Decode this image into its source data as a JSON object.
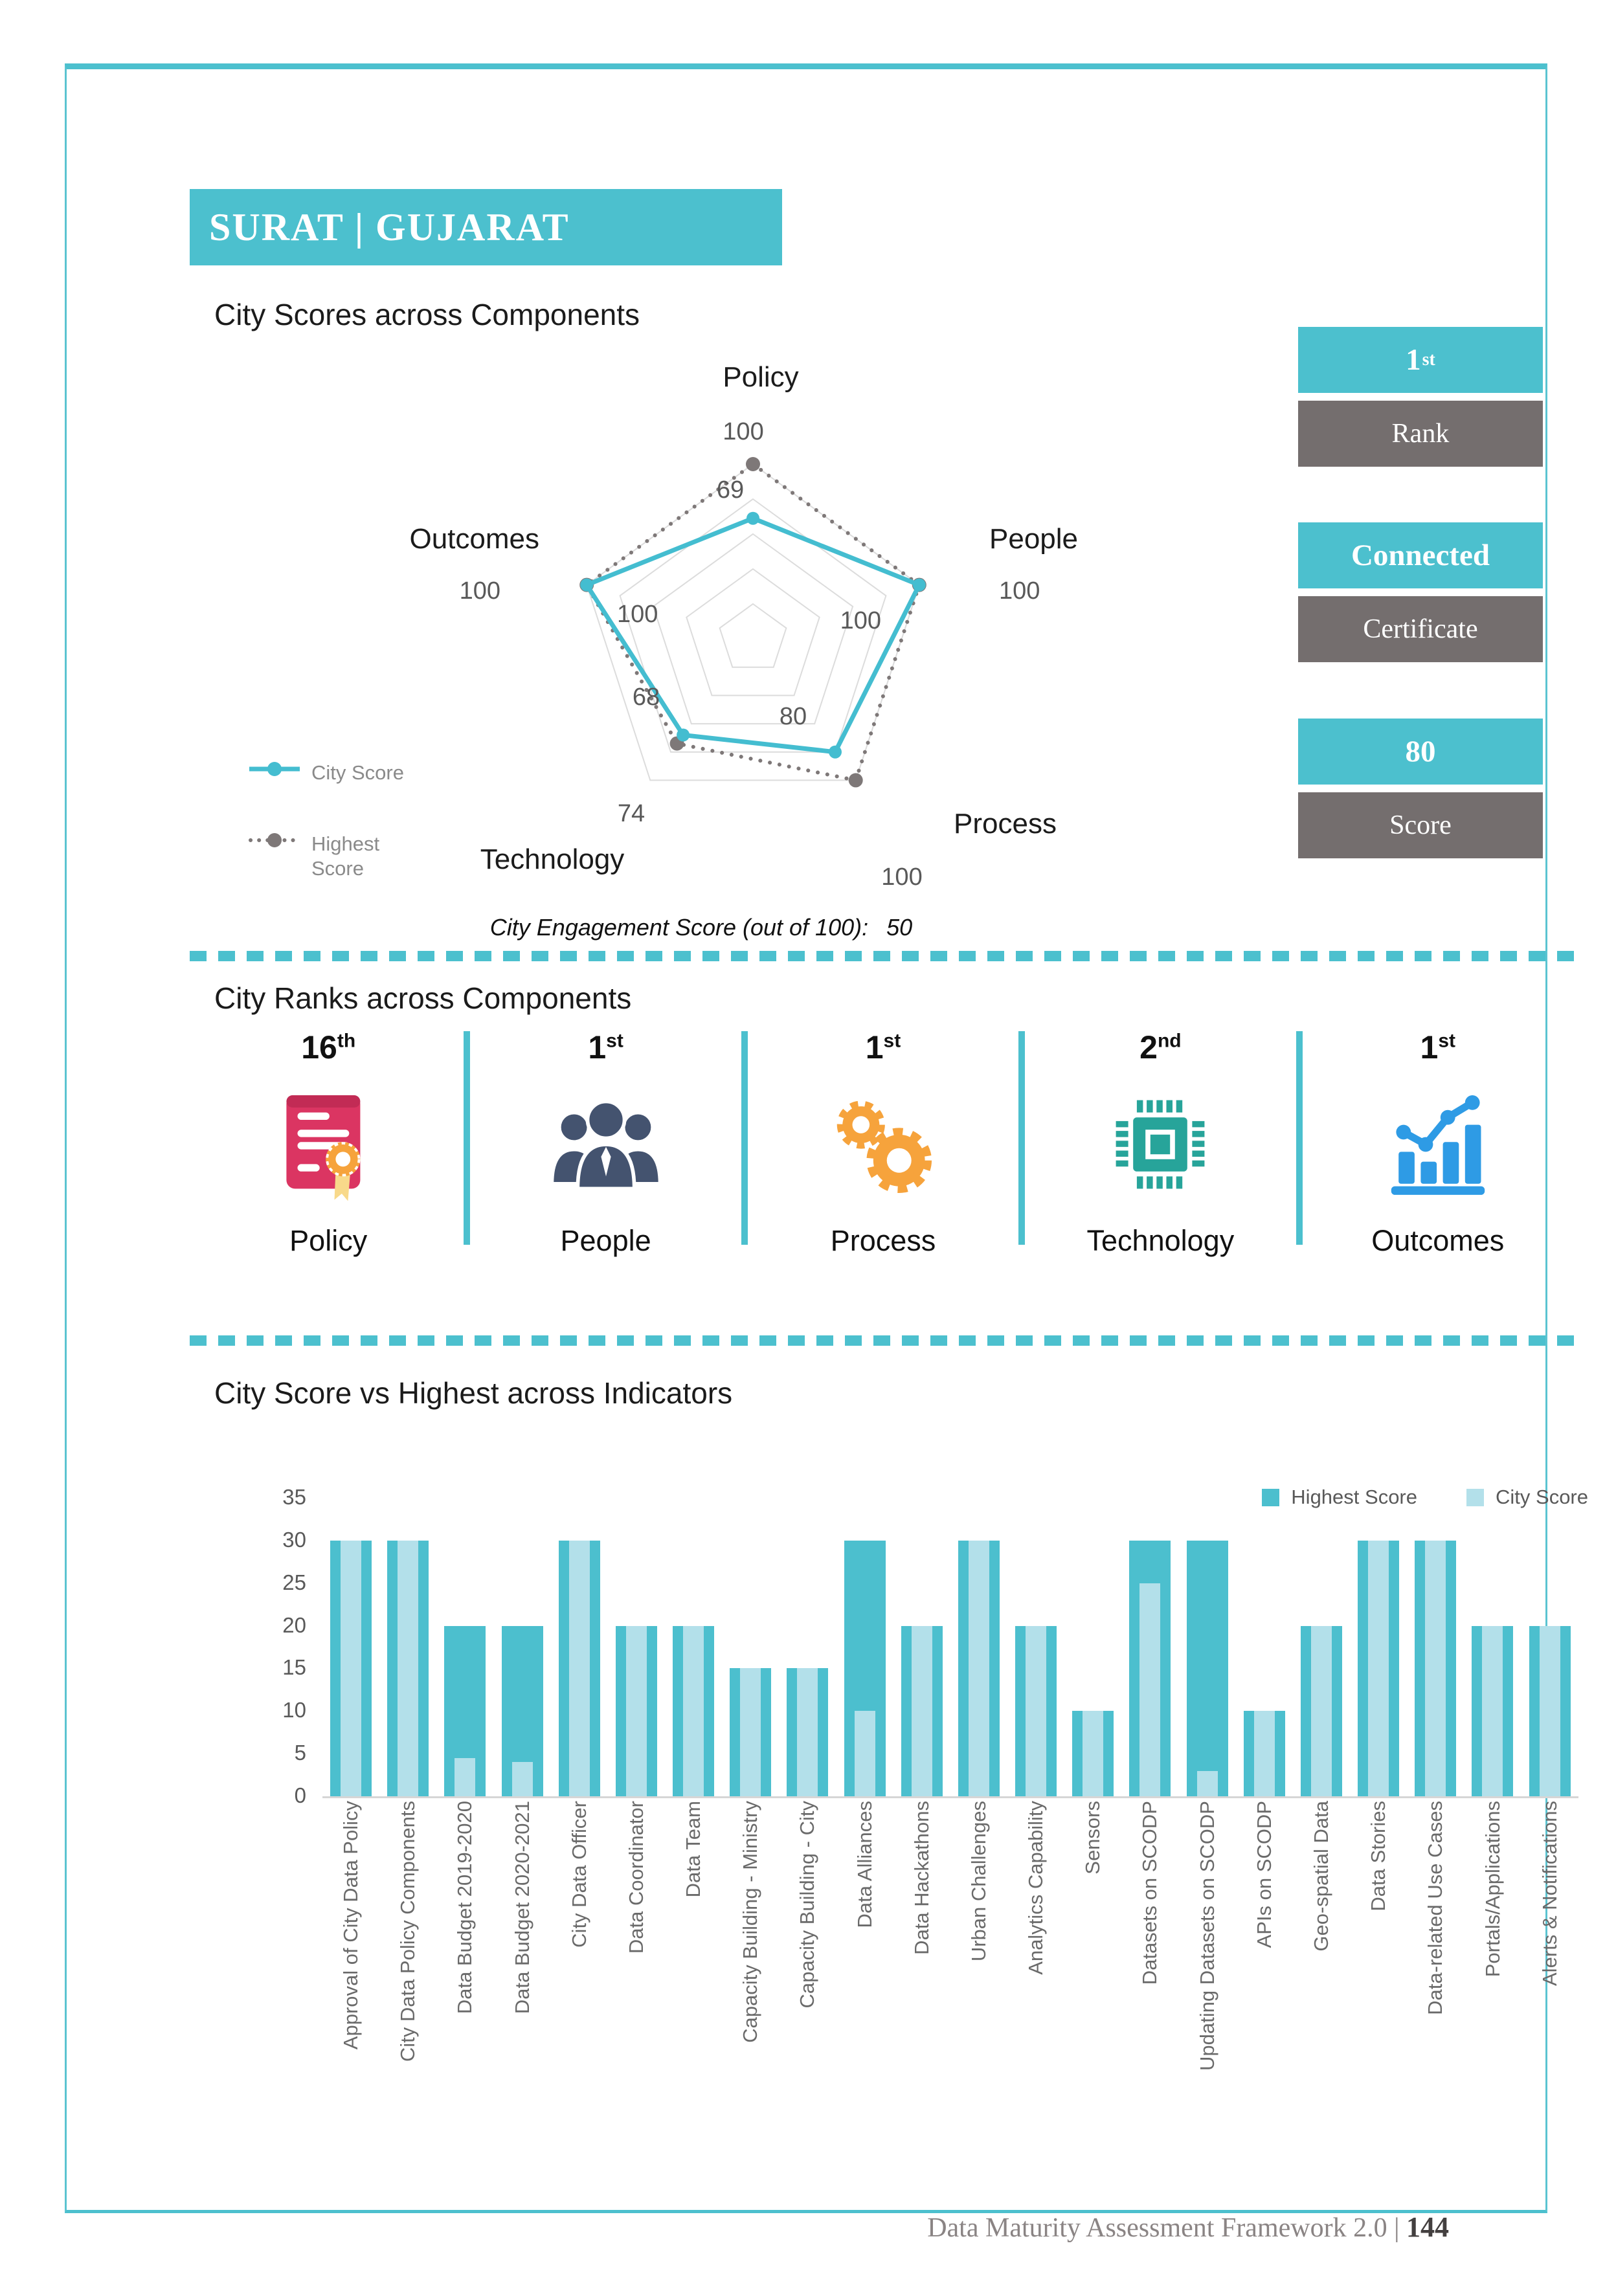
{
  "page": {
    "banner_title": "SURAT | GUJARAT",
    "footer_text": "Data Maturity Assessment Framework 2.0 | ",
    "footer_page_number": "144"
  },
  "sections": {
    "scores_title": "City Scores across Components",
    "ranks_title": "City Ranks across Components",
    "indicators_title": "City Score vs Highest across Indicators",
    "engagement_label": "City Engagement Score (out of 100):",
    "engagement_value": "50"
  },
  "badges": [
    {
      "value": "1",
      "suffix": "st",
      "label": "Rank"
    },
    {
      "value": "Connected",
      "suffix": "",
      "label": "Certificate"
    },
    {
      "value": "80",
      "suffix": "",
      "label": "Score"
    }
  ],
  "component_ranks": [
    {
      "rank": "16",
      "suffix": "th",
      "label": "Policy",
      "icon": "certificate-icon"
    },
    {
      "rank": "1",
      "suffix": "st",
      "label": "People",
      "icon": "people-icon"
    },
    {
      "rank": "1",
      "suffix": "st",
      "label": "Process",
      "icon": "gears-icon"
    },
    {
      "rank": "2",
      "suffix": "nd",
      "label": "Technology",
      "icon": "chip-icon"
    },
    {
      "rank": "1",
      "suffix": "st",
      "label": "Outcomes",
      "icon": "bar-chart-icon"
    }
  ],
  "colors": {
    "accent_teal": "#4CC0CE",
    "badge_gray": "#746E6E",
    "bar_highest": "#4CBFCE",
    "bar_city": "#B3E0EA",
    "radar_city": "#44BDD0",
    "radar_highest": "#7E7878"
  },
  "chart_data": [
    {
      "type": "radar",
      "title": "City Scores across Components",
      "categories": [
        "Policy",
        "People",
        "Process",
        "Technology",
        "Outcomes"
      ],
      "series": [
        {
          "name": "City Score",
          "values": [
            69,
            100,
            80,
            68,
            100
          ]
        },
        {
          "name": "Highest Score",
          "values": [
            100,
            100,
            100,
            74,
            100
          ]
        }
      ],
      "max": 100,
      "rings": 5,
      "grid": "pentagon",
      "legend_position": "left",
      "footnote": "City Engagement Score (out of 100):  50"
    },
    {
      "type": "bar",
      "title": "City Score vs Highest across Indicators",
      "categories": [
        "Approval of City Data Policy",
        "City Data Policy Components",
        "Data Budget 2019-2020",
        "Data Budget 2020-2021",
        "City Data Officer",
        "Data Coordinator",
        "Data Team",
        "Capacity Building - Ministry",
        "Capacity Building - City",
        "Data Alliances",
        "Data Hackathons",
        "Urban Challenges",
        "Analytics Capability",
        "Sensors",
        "Datasets on SCODP",
        "Updating Datasets on SCODP",
        "APIs on SCODP",
        "Geo-spatial Data",
        "Data Stories",
        "Data-related Use Cases",
        "Portals/Applications",
        "Alerts & Notifications"
      ],
      "series": [
        {
          "name": "Highest Score",
          "values": [
            30,
            30,
            20,
            20,
            30,
            20,
            20,
            15,
            15,
            30,
            20,
            30,
            20,
            10,
            30,
            30,
            10,
            20,
            30,
            30,
            20,
            20
          ]
        },
        {
          "name": "City Score",
          "values": [
            30,
            30,
            4.5,
            4,
            30,
            20,
            20,
            15,
            15,
            10,
            20,
            30,
            20,
            10,
            25,
            3,
            10,
            20,
            30,
            30,
            20,
            20
          ]
        }
      ],
      "ylim": [
        0,
        35
      ],
      "yticks": [
        0,
        5,
        10,
        15,
        20,
        25,
        30,
        35
      ],
      "legend_position": "top-right",
      "grid": false
    }
  ]
}
